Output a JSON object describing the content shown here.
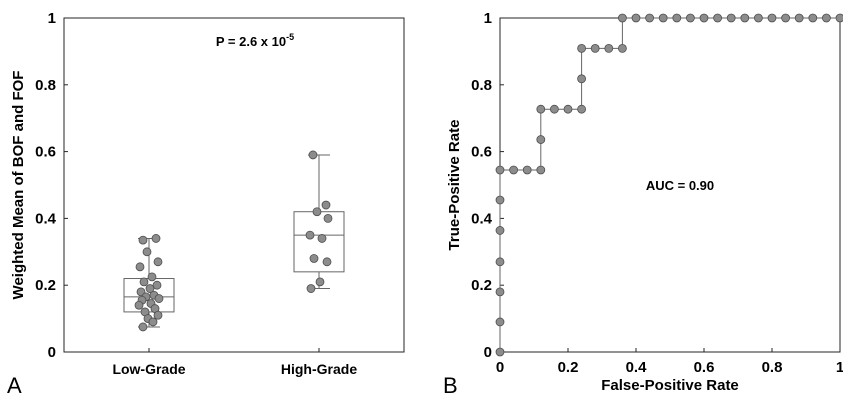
{
  "chart_data": [
    {
      "type": "box",
      "panel_label": "A",
      "title": "",
      "xlabel": "",
      "ylabel": "Weighted Mean of BOF and FOF",
      "categories": [
        "Low-Grade",
        "High-Grade"
      ],
      "ylim": [
        0,
        1
      ],
      "yticks": [
        "0",
        "0.2",
        "0.4",
        "0.6",
        "0.8",
        "1"
      ],
      "annotation": {
        "base": "P = 2.6 x 10",
        "exponent": "-5"
      },
      "grid": false,
      "boxes": [
        {
          "category": "Low-Grade",
          "whisker_low": 0.075,
          "q1": 0.12,
          "median": 0.165,
          "q3": 0.22,
          "whisker_high": 0.34
        },
        {
          "category": "High-Grade",
          "whisker_low": 0.19,
          "q1": 0.24,
          "median": 0.35,
          "q3": 0.42,
          "whisker_high": 0.59
        }
      ],
      "points": [
        {
          "category": "Low-Grade",
          "values": [
            0.335,
            0.34,
            0.3,
            0.27,
            0.255,
            0.225,
            0.21,
            0.2,
            0.19,
            0.18,
            0.17,
            0.165,
            0.16,
            0.155,
            0.145,
            0.14,
            0.13,
            0.12,
            0.11,
            0.1,
            0.09,
            0.075
          ]
        },
        {
          "category": "High-Grade",
          "values": [
            0.59,
            0.44,
            0.42,
            0.4,
            0.35,
            0.34,
            0.28,
            0.27,
            0.21,
            0.19
          ]
        }
      ]
    },
    {
      "type": "line",
      "panel_label": "B",
      "title": "",
      "xlabel": "False-Positive Rate",
      "ylabel": "True-Positive Rate",
      "xlim": [
        0,
        1
      ],
      "ylim": [
        0,
        1
      ],
      "xticks": [
        "0",
        "0.2",
        "0.4",
        "0.6",
        "0.8",
        "1"
      ],
      "yticks": [
        "0",
        "0.2",
        "0.4",
        "0.6",
        "0.8",
        "1"
      ],
      "annotation": "AUC = 0.90",
      "grid": false,
      "series": [
        {
          "x": [
            0,
            0,
            0,
            0,
            0,
            0,
            0,
            0.04,
            0.08,
            0.12,
            0.12,
            0.12,
            0.16,
            0.2,
            0.24,
            0.24,
            0.24,
            0.28,
            0.32,
            0.36,
            0.36,
            0.4,
            0.44,
            0.48,
            0.52,
            0.56,
            0.6,
            0.64,
            0.68,
            0.72,
            0.76,
            0.8,
            0.84,
            0.88,
            0.92,
            0.96,
            1.0
          ],
          "y": [
            0,
            0.09,
            0.18,
            0.27,
            0.364,
            0.455,
            0.545,
            0.545,
            0.545,
            0.545,
            0.636,
            0.727,
            0.727,
            0.727,
            0.727,
            0.818,
            0.909,
            0.909,
            0.909,
            0.909,
            1,
            1,
            1,
            1,
            1,
            1,
            1,
            1,
            1,
            1,
            1,
            1,
            1,
            1,
            1,
            1,
            1
          ]
        }
      ]
    }
  ]
}
